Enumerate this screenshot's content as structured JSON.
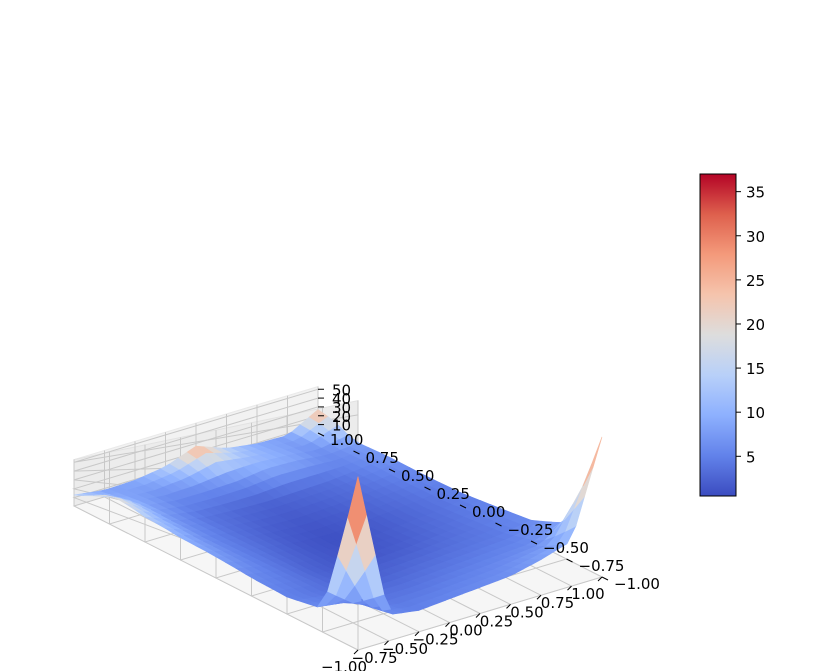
{
  "chart_data": {
    "type": "surface3d",
    "title": "",
    "xlabel": "",
    "ylabel": "",
    "zlabel": "",
    "x_ticks": [
      "−1.00",
      "−0.75",
      "−0.50",
      "−0.25",
      "0.00",
      "0.25",
      "0.50",
      "0.75",
      "1.00"
    ],
    "y_ticks": [
      "−1.00",
      "−0.75",
      "−0.50",
      "−0.25",
      "0.00",
      "0.25",
      "0.50",
      "0.75",
      "1.00"
    ],
    "z_ticks": [
      "10",
      "20",
      "30",
      "40",
      "50"
    ],
    "xlim": [
      -1,
      1
    ],
    "ylim": [
      -1,
      1
    ],
    "zlim": [
      0.5,
      53
    ],
    "colormap": "coolwarm",
    "colorbar": {
      "ticks": [
        "5",
        "10",
        "15",
        "20",
        "25",
        "30",
        "35"
      ],
      "range": [
        0.5,
        37
      ]
    },
    "surface": {
      "grid": [
        -1.0,
        -0.75,
        -0.5,
        -0.25,
        0.0,
        0.25,
        0.5,
        0.75,
        1.0
      ],
      "z": [
        [
          37,
          6,
          5,
          5.5,
          6,
          6.5,
          8,
          10,
          30
        ],
        [
          6,
          5,
          4,
          4,
          4.5,
          5,
          5.5,
          6,
          9
        ],
        [
          5,
          4,
          3,
          2.5,
          3,
          3.5,
          4,
          4.5,
          6
        ],
        [
          6,
          4.5,
          2.5,
          1.5,
          1.5,
          2,
          3,
          4,
          5.5
        ],
        [
          8,
          5,
          3,
          1.5,
          0.8,
          1.5,
          2.5,
          3.5,
          5
        ],
        [
          10,
          5.5,
          3.5,
          2,
          1.5,
          2,
          3,
          4,
          5.5
        ],
        [
          14,
          7,
          4,
          3,
          2.5,
          3,
          3.5,
          5,
          7
        ],
        [
          22,
          9,
          6,
          6,
          7,
          10,
          9,
          6,
          8
        ],
        [
          13,
          8,
          9,
          14,
          27,
          14,
          9,
          8,
          27
        ]
      ]
    }
  }
}
